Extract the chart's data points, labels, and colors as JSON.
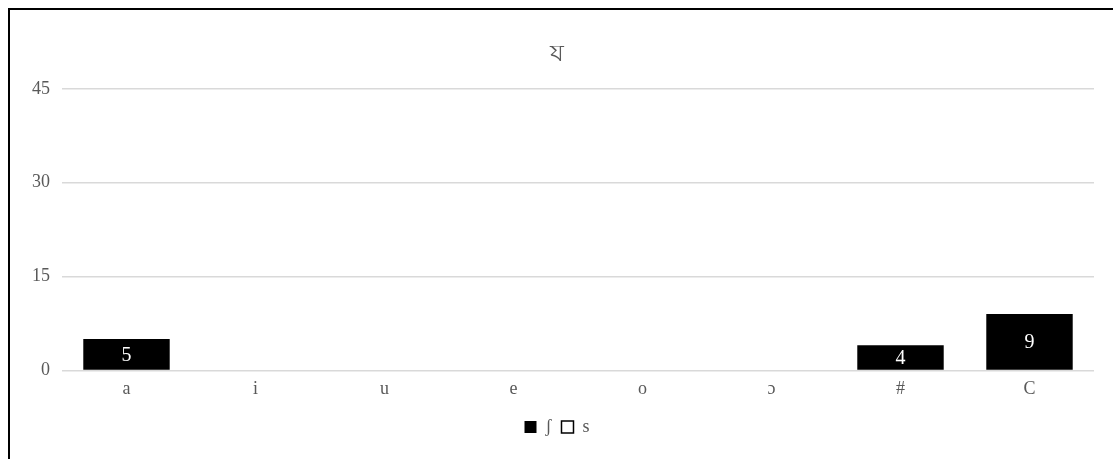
{
  "chart_data": {
    "type": "bar",
    "title": "য",
    "categories": [
      "a",
      "i",
      "u",
      "e",
      "o",
      "ɔ",
      "#",
      "C"
    ],
    "series": [
      {
        "name": "ʃ",
        "color": "#000000",
        "values": [
          5,
          0,
          0,
          0,
          0,
          0,
          4,
          9
        ],
        "value_labels": [
          "5",
          null,
          null,
          null,
          null,
          null,
          "4",
          "9"
        ]
      },
      {
        "name": "s",
        "color": "#ffffff",
        "values": [
          0,
          0,
          0,
          0,
          0,
          0,
          0,
          0
        ]
      }
    ],
    "stacked": true,
    "ylim": [
      0,
      45
    ],
    "yticks": [
      0,
      15,
      30,
      45
    ],
    "grid": "y",
    "legend": "bottom"
  }
}
